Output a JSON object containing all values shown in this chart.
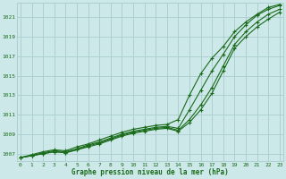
{
  "background_color": "#cce8e8",
  "grid_color": "#aacccc",
  "line_color": "#1a6b1a",
  "text_color": "#1a6b1a",
  "xlabel": "Graphe pression niveau de la mer (hPa)",
  "ylim": [
    1006.2,
    1022.5
  ],
  "xlim": [
    -0.3,
    23.3
  ],
  "yticks": [
    1007,
    1009,
    1011,
    1013,
    1015,
    1017,
    1019,
    1021
  ],
  "xticks": [
    0,
    1,
    2,
    3,
    4,
    5,
    6,
    7,
    8,
    9,
    10,
    11,
    12,
    13,
    14,
    15,
    16,
    17,
    18,
    19,
    20,
    21,
    22,
    23
  ],
  "series": [
    [
      1006.6,
      1006.8,
      1007.1,
      1007.3,
      1007.2,
      1007.5,
      1007.9,
      1008.2,
      1008.6,
      1009.0,
      1009.3,
      1009.5,
      1009.7,
      1009.8,
      1009.6,
      1011.5,
      1013.5,
      1015.5,
      1017.2,
      1019.0,
      1020.2,
      1021.2,
      1021.8,
      1022.2
    ],
    [
      1006.6,
      1006.9,
      1007.2,
      1007.4,
      1007.3,
      1007.7,
      1008.0,
      1008.4,
      1008.8,
      1009.2,
      1009.5,
      1009.7,
      1009.9,
      1010.0,
      1010.5,
      1013.0,
      1015.2,
      1016.8,
      1018.0,
      1019.5,
      1020.5,
      1021.3,
      1022.0,
      1022.3
    ],
    [
      1006.6,
      1006.8,
      1007.0,
      1007.2,
      1007.1,
      1007.4,
      1007.8,
      1008.1,
      1008.5,
      1008.9,
      1009.2,
      1009.4,
      1009.6,
      1009.7,
      1009.4,
      1010.5,
      1012.0,
      1013.8,
      1016.0,
      1018.2,
      1019.5,
      1020.5,
      1021.3,
      1021.8
    ],
    [
      1006.6,
      1006.8,
      1007.0,
      1007.2,
      1007.1,
      1007.4,
      1007.7,
      1008.0,
      1008.4,
      1008.8,
      1009.1,
      1009.3,
      1009.5,
      1009.6,
      1009.3,
      1010.2,
      1011.5,
      1013.2,
      1015.5,
      1017.8,
      1019.0,
      1020.0,
      1020.8,
      1021.5
    ]
  ]
}
